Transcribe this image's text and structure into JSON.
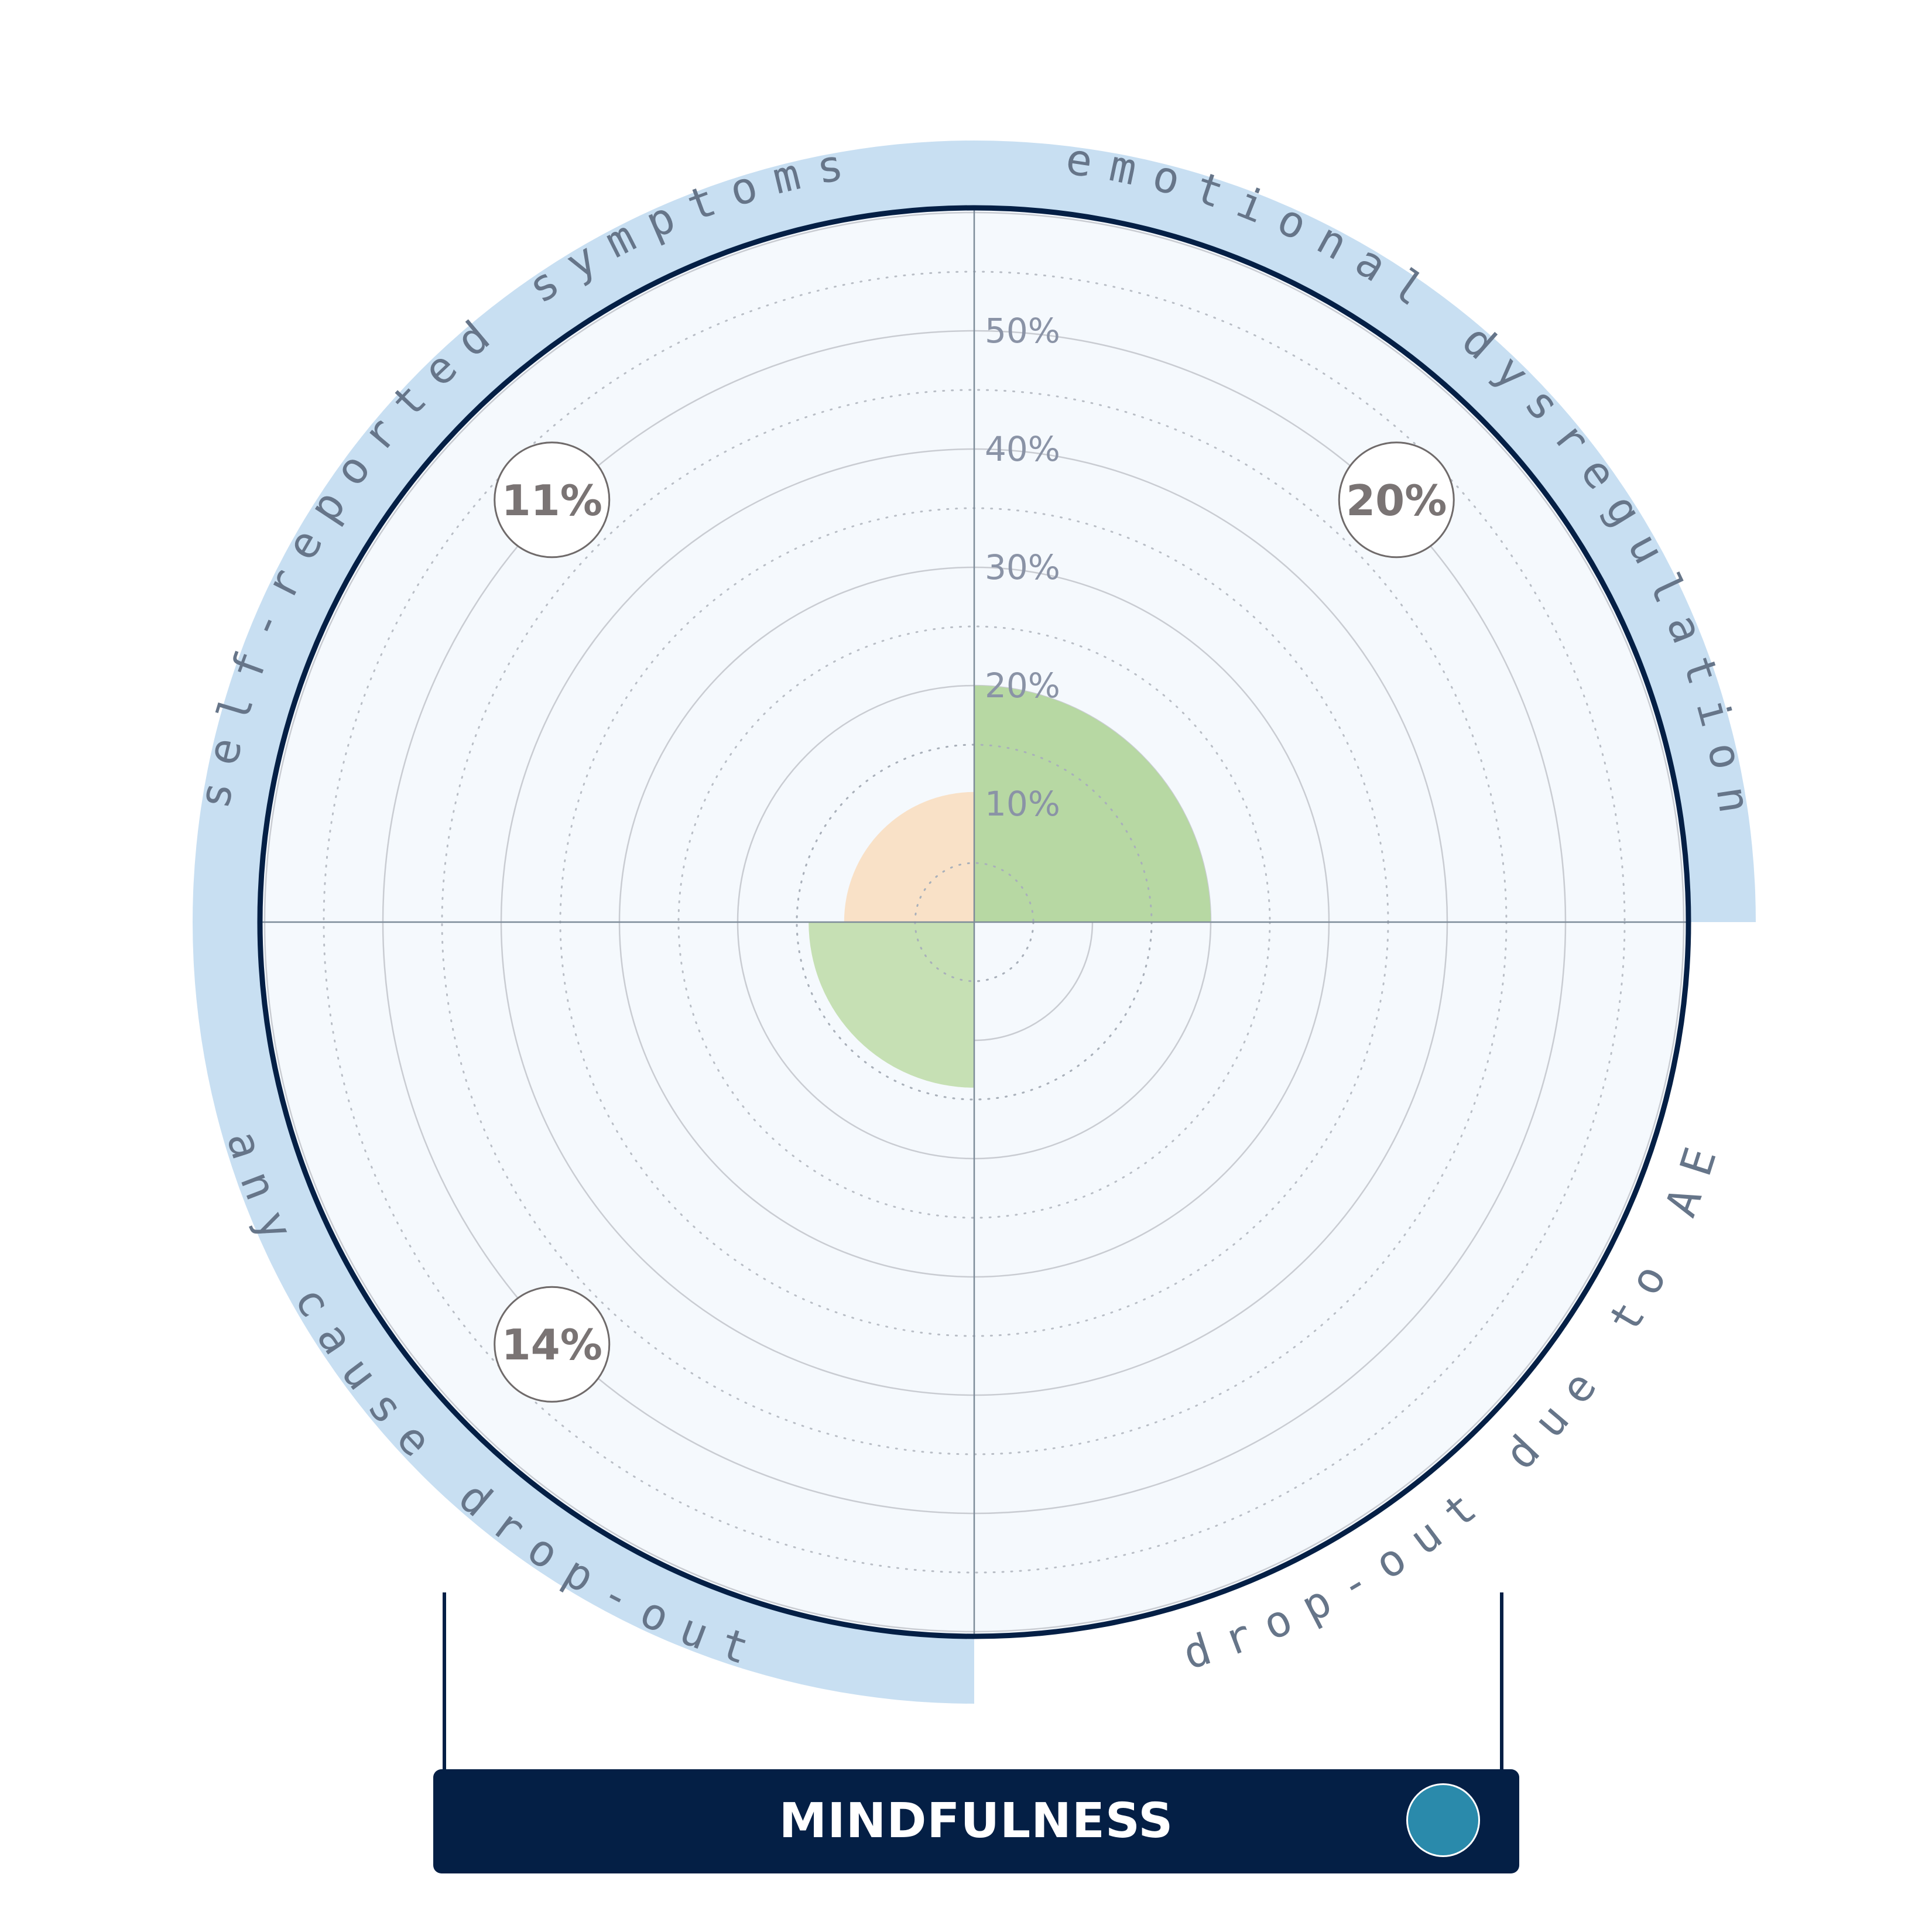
{
  "chart_data": {
    "type": "polar-area",
    "title": "",
    "r_ticks": [
      10,
      20,
      30,
      40,
      50
    ],
    "r_tick_labels": [
      "10%",
      "20%",
      "30%",
      "40%",
      "50%"
    ],
    "rlim": [
      0,
      60
    ],
    "sectors": [
      {
        "outcome": "emotional dysregulation",
        "label_side": "outside",
        "value": 20,
        "value_label": "20%",
        "color": "#b7d8a3",
        "highlighted": true
      },
      {
        "outcome": "drop-out due to AE",
        "label_side": "outside",
        "value": null,
        "value_label": "",
        "color": null,
        "highlighted": false
      },
      {
        "outcome": "any cause drop-out",
        "label_side": "outside",
        "value": 14,
        "value_label": "14%",
        "color": "#c6e0b4",
        "highlighted": true
      },
      {
        "outcome": "self-reported symptoms",
        "label_side": "outside",
        "value": 11,
        "value_label": "11%",
        "color": "#f9e1c7",
        "highlighted": true
      }
    ]
  },
  "footer": {
    "title": "MINDFULNESS",
    "dot_color": "#2a8aab"
  },
  "colors": {
    "background": "#ffffff",
    "plot_fill": "#f5f9fd",
    "outer_ring": "#041f45",
    "highlight_band": "#c8dff2",
    "axis_line": "#7d8b99",
    "grid": "#c9ccd2"
  }
}
